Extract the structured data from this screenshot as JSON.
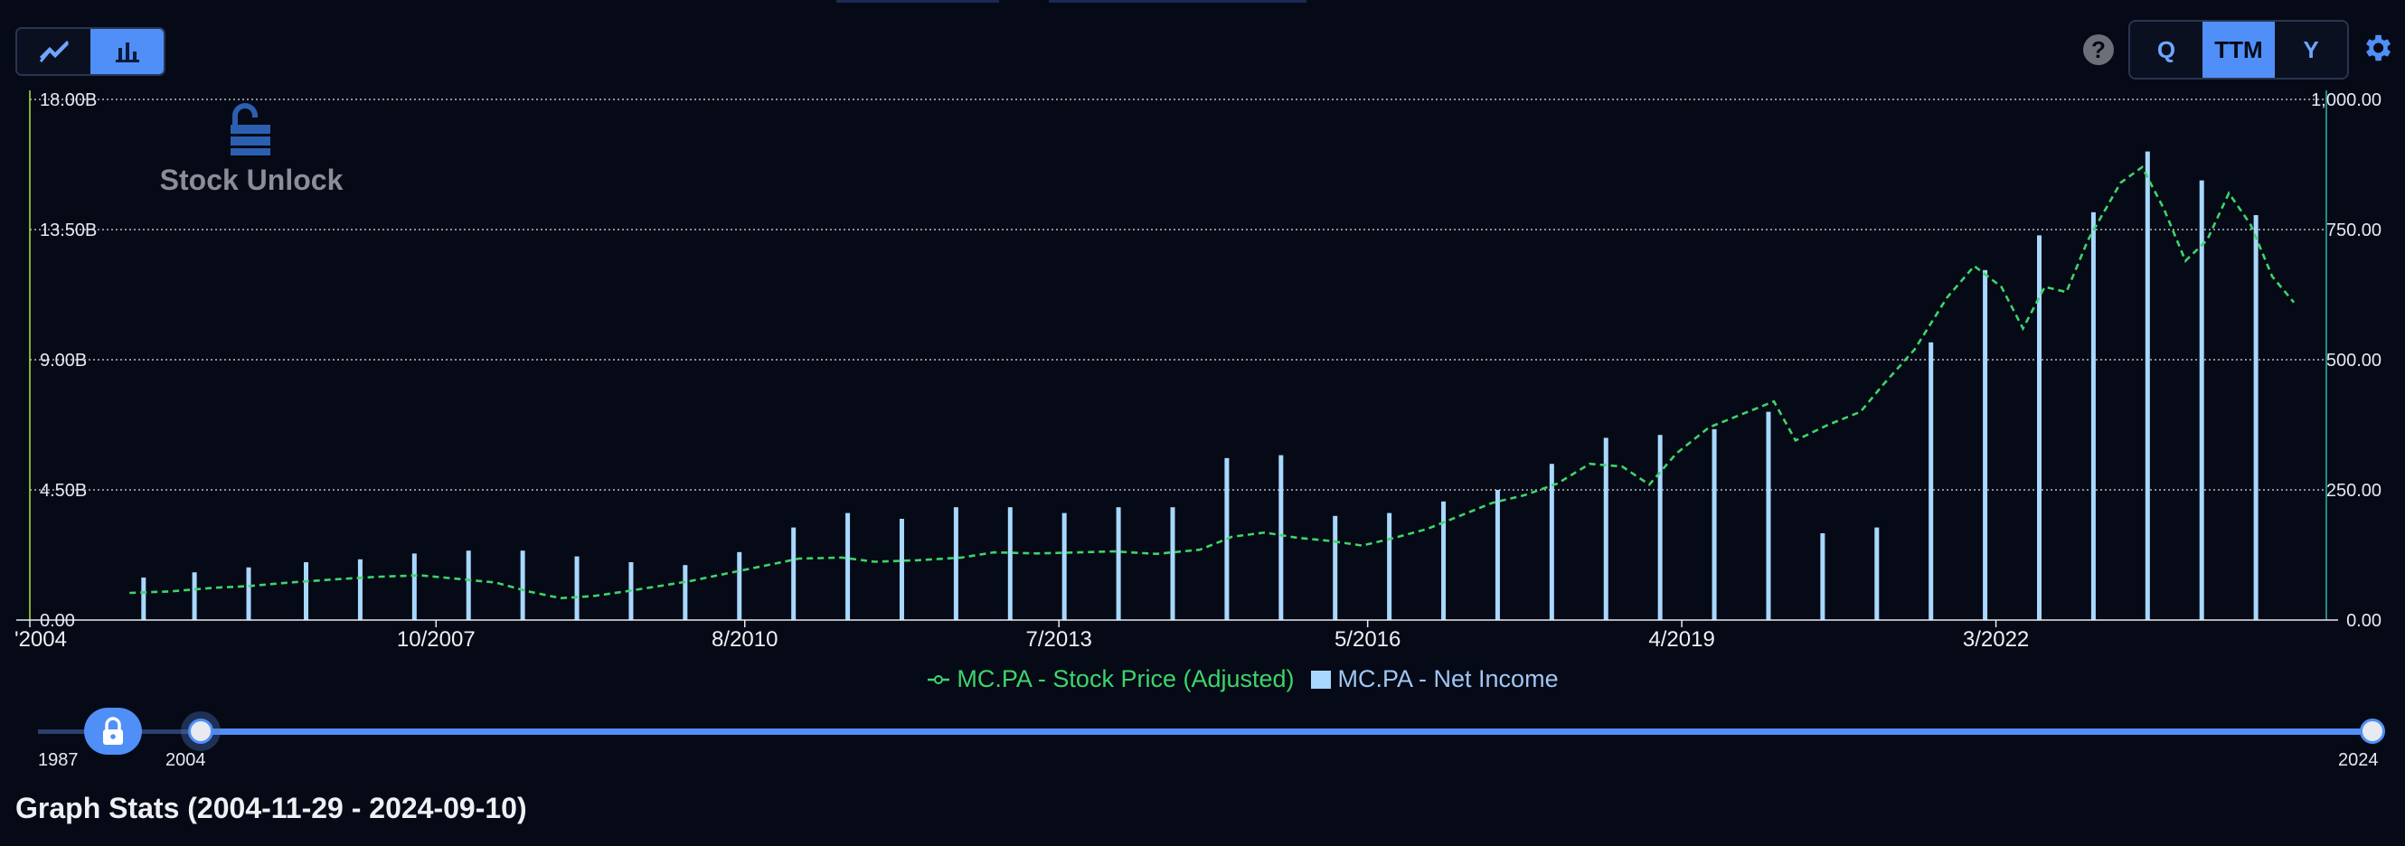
{
  "toolbar": {
    "chart_types": [
      {
        "name": "line-chart",
        "icon": "line-chart-icon",
        "active": false
      },
      {
        "name": "bar-chart",
        "icon": "bar-chart-icon",
        "active": true
      }
    ],
    "help_label": "?",
    "periods": [
      {
        "label": "Q",
        "active": false
      },
      {
        "label": "TTM",
        "active": true
      },
      {
        "label": "Y",
        "active": false
      }
    ],
    "settings_icon": "gear-icon"
  },
  "watermark": {
    "text": "Stock Unlock",
    "icon": "stock-unlock-logo"
  },
  "colors": {
    "background": "#050a16",
    "price_line": "#3ed46b",
    "income_bar": "#a8d8ff",
    "accent": "#4f8ff7",
    "left_axis": "#b4e23a",
    "right_axis": "#2fb3a8"
  },
  "chart_data": {
    "type": "bar",
    "x_range": [
      "2004-11-29",
      "2024-09-10"
    ],
    "x_ticks": [
      "'2004",
      "10/2007",
      "8/2010",
      "7/2013",
      "5/2016",
      "4/2019",
      "3/2022"
    ],
    "y_left": {
      "min": 0,
      "max": 18,
      "ticks": [
        "18.00B",
        "13.50B",
        "9.00B",
        "4.50B",
        "0.00"
      ]
    },
    "y_right": {
      "min": 0,
      "max": 1000,
      "ticks": [
        "1,000.00",
        "750.00",
        "500.00",
        "250.00",
        "0.00"
      ]
    },
    "grid": true,
    "legend_position": "bottom",
    "series": [
      {
        "name": "MC.PA - Stock Price (Adjusted)",
        "kind": "line",
        "axis": "right",
        "style": "dashed",
        "points": [
          [
            2004.92,
            52
          ],
          [
            2005.3,
            55
          ],
          [
            2005.7,
            62
          ],
          [
            2006.0,
            65
          ],
          [
            2006.4,
            72
          ],
          [
            2006.8,
            78
          ],
          [
            2007.2,
            83
          ],
          [
            2007.6,
            86
          ],
          [
            2007.9,
            80
          ],
          [
            2008.3,
            72
          ],
          [
            2008.6,
            55
          ],
          [
            2008.9,
            42
          ],
          [
            2009.2,
            46
          ],
          [
            2009.5,
            55
          ],
          [
            2009.8,
            65
          ],
          [
            2010.1,
            75
          ],
          [
            2010.4,
            88
          ],
          [
            2010.8,
            105
          ],
          [
            2011.1,
            118
          ],
          [
            2011.5,
            120
          ],
          [
            2011.8,
            112
          ],
          [
            2012.2,
            115
          ],
          [
            2012.6,
            120
          ],
          [
            2012.9,
            130
          ],
          [
            2013.3,
            128
          ],
          [
            2013.7,
            130
          ],
          [
            2014.0,
            132
          ],
          [
            2014.4,
            127
          ],
          [
            2014.8,
            135
          ],
          [
            2015.1,
            160
          ],
          [
            2015.4,
            168
          ],
          [
            2015.7,
            158
          ],
          [
            2016.0,
            152
          ],
          [
            2016.3,
            143
          ],
          [
            2016.6,
            158
          ],
          [
            2016.9,
            175
          ],
          [
            2017.2,
            200
          ],
          [
            2017.5,
            225
          ],
          [
            2017.8,
            240
          ],
          [
            2018.1,
            262
          ],
          [
            2018.4,
            300
          ],
          [
            2018.7,
            295
          ],
          [
            2018.95,
            260
          ],
          [
            2019.2,
            320
          ],
          [
            2019.5,
            370
          ],
          [
            2019.8,
            395
          ],
          [
            2020.1,
            420
          ],
          [
            2020.3,
            345
          ],
          [
            2020.6,
            375
          ],
          [
            2020.9,
            400
          ],
          [
            2021.1,
            450
          ],
          [
            2021.4,
            520
          ],
          [
            2021.7,
            620
          ],
          [
            2021.95,
            680
          ],
          [
            2022.2,
            640
          ],
          [
            2022.4,
            560
          ],
          [
            2022.6,
            640
          ],
          [
            2022.8,
            630
          ],
          [
            2023.0,
            730
          ],
          [
            2023.3,
            840
          ],
          [
            2023.5,
            870
          ],
          [
            2023.7,
            790
          ],
          [
            2023.9,
            690
          ],
          [
            2024.1,
            730
          ],
          [
            2024.3,
            820
          ],
          [
            2024.5,
            760
          ],
          [
            2024.7,
            660
          ],
          [
            2024.9,
            610
          ]
        ]
      },
      {
        "name": "MC.PA - Net Income",
        "kind": "bar",
        "axis": "left",
        "points": [
          [
            2005.05,
            1.47
          ],
          [
            2005.52,
            1.65
          ],
          [
            2006.02,
            1.82
          ],
          [
            2006.55,
            2.0
          ],
          [
            2007.05,
            2.1
          ],
          [
            2007.55,
            2.3
          ],
          [
            2008.05,
            2.4
          ],
          [
            2008.55,
            2.4
          ],
          [
            2009.05,
            2.2
          ],
          [
            2009.55,
            2.0
          ],
          [
            2010.05,
            1.9
          ],
          [
            2010.55,
            2.35
          ],
          [
            2011.05,
            3.2
          ],
          [
            2011.55,
            3.7
          ],
          [
            2012.05,
            3.5
          ],
          [
            2012.55,
            3.9
          ],
          [
            2013.05,
            3.9
          ],
          [
            2013.55,
            3.7
          ],
          [
            2014.05,
            3.9
          ],
          [
            2014.55,
            3.9
          ],
          [
            2015.05,
            5.6
          ],
          [
            2015.55,
            5.7
          ],
          [
            2016.05,
            3.6
          ],
          [
            2016.55,
            3.7
          ],
          [
            2017.05,
            4.1
          ],
          [
            2017.55,
            4.5
          ],
          [
            2018.05,
            5.4
          ],
          [
            2018.55,
            6.3
          ],
          [
            2019.05,
            6.4
          ],
          [
            2019.55,
            6.6
          ],
          [
            2020.05,
            7.2
          ],
          [
            2020.55,
            3.0
          ],
          [
            2021.05,
            3.2
          ],
          [
            2021.55,
            9.6
          ],
          [
            2022.05,
            12.1
          ],
          [
            2022.55,
            13.3
          ],
          [
            2023.05,
            14.1
          ],
          [
            2023.55,
            16.2
          ],
          [
            2024.05,
            15.2
          ],
          [
            2024.55,
            14.0
          ]
        ]
      }
    ]
  },
  "legend": [
    {
      "label": "MC.PA - Stock Price (Adjusted)",
      "icon": "line-marker-icon"
    },
    {
      "label": "MC.PA - Net Income",
      "icon": "bar-swatch-icon"
    }
  ],
  "slider": {
    "min_label": "1987",
    "start_label": "2004",
    "end_label": "2024",
    "lock_icon": "lock-icon"
  },
  "stats": {
    "title": "Graph Stats (2004-11-29 - 2024-09-10)"
  }
}
